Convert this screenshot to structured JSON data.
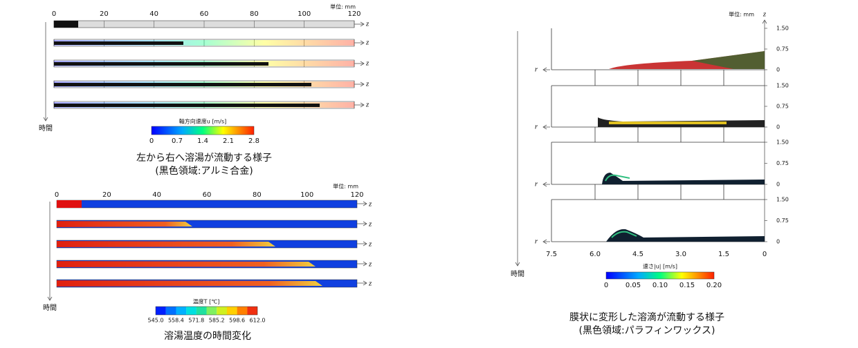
{
  "left_top": {
    "unit": "単位: mm",
    "ticks": [
      "0",
      "20",
      "40",
      "60",
      "80",
      "100",
      "120"
    ],
    "axis_label": "z",
    "time_label": "時間",
    "colorbar": {
      "title": "軸方向速度u [m/s]",
      "ticks": [
        "0",
        "0.7",
        "1.4",
        "2.1",
        "2.8"
      ]
    },
    "caption": [
      "左から右へ溶湯が流動する様子",
      "(黒色領域:アルミ合金)"
    ]
  },
  "left_bottom": {
    "unit": "単位: mm",
    "ticks": [
      "0",
      "20",
      "40",
      "60",
      "80",
      "100",
      "120"
    ],
    "axis_label": "z",
    "time_label": "時間",
    "colorbar": {
      "title": "温度T [℃]",
      "ticks": [
        "545.0",
        "558.4",
        "571.8",
        "585.2",
        "598.6",
        "612.0"
      ]
    },
    "caption": [
      "溶湯温度の時間変化"
    ]
  },
  "right": {
    "unit": "単位: mm",
    "z_label": "z",
    "r_label": "r",
    "yticks": [
      "1.50",
      "0.75",
      "0"
    ],
    "xticks": [
      "7.5",
      "6.0",
      "4.5",
      "3.0",
      "1.5",
      "0"
    ],
    "time_label": "時間",
    "colorbar": {
      "title": "速さ|u| [m/s]",
      "ticks": [
        "0",
        "0.05",
        "0.10",
        "0.15",
        "0.20"
      ]
    },
    "caption": [
      "膜状に変形した溶滴が流動する様子",
      "(黒色領域:パラフィンワックス)"
    ]
  }
}
